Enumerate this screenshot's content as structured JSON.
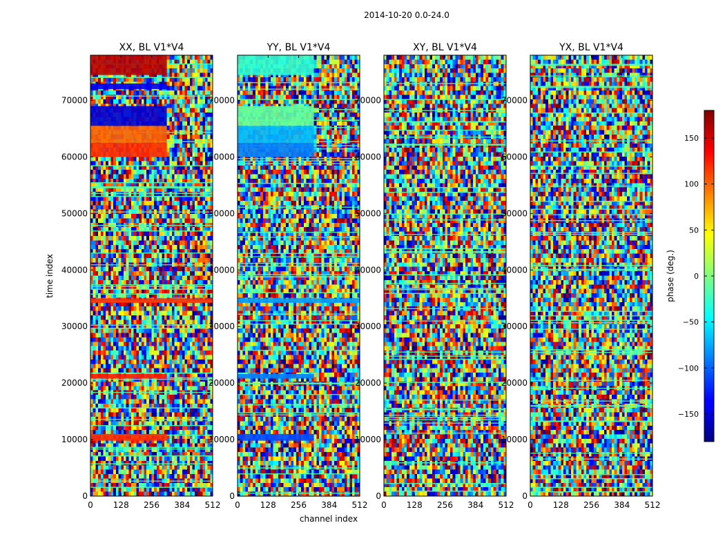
{
  "chart_data": {
    "type": "heatmap",
    "suptitle": "2014-10-20 0.0-24.0",
    "xlabel": "channel index",
    "ylabel": "time index",
    "xlim": [
      0,
      512
    ],
    "ylim": [
      0,
      78000
    ],
    "x_ticks": [
      0,
      128,
      256,
      384,
      512
    ],
    "y_ticks": [
      0,
      10000,
      20000,
      30000,
      40000,
      50000,
      60000,
      70000
    ],
    "panels": [
      {
        "title": "XX, BL V1*V4",
        "bands": [
          {
            "y0": 9800,
            "y1": 11000,
            "phase": 120,
            "x_end": 320
          },
          {
            "y0": 20800,
            "y1": 21600,
            "phase": 125,
            "x_end": 320
          },
          {
            "y0": 34200,
            "y1": 35000,
            "phase": 120,
            "x_end": 512
          },
          {
            "y0": 60000,
            "y1": 62500,
            "phase": 120,
            "x_end": 320
          },
          {
            "y0": 62500,
            "y1": 65500,
            "phase": 100,
            "x_end": 320
          },
          {
            "y0": 65500,
            "y1": 69000,
            "phase": -150,
            "x_end": 320
          },
          {
            "y0": 72000,
            "y1": 73000,
            "phase": -140,
            "x_end": 320
          },
          {
            "y0": 74500,
            "y1": 78000,
            "phase": 160,
            "x_end": 320
          }
        ]
      },
      {
        "title": "YY, BL V1*V4",
        "bands": [
          {
            "y0": 9800,
            "y1": 11000,
            "phase": -110,
            "x_end": 320
          },
          {
            "y0": 20800,
            "y1": 21600,
            "phase": -90,
            "x_end": 320
          },
          {
            "y0": 34200,
            "y1": 35000,
            "phase": -80,
            "x_end": 512
          },
          {
            "y0": 60000,
            "y1": 62500,
            "phase": -90,
            "x_end": 320
          },
          {
            "y0": 62500,
            "y1": 65500,
            "phase": -70,
            "x_end": 320
          },
          {
            "y0": 65500,
            "y1": 69000,
            "phase": -10,
            "x_end": 320
          },
          {
            "y0": 74500,
            "y1": 78000,
            "phase": -30,
            "x_end": 320
          }
        ]
      },
      {
        "title": "XY, BL V1*V4",
        "bands": []
      },
      {
        "title": "YX, BL V1*V4",
        "bands": []
      }
    ],
    "colorbar": {
      "label": "phase (deg.)",
      "range": [
        -180,
        180
      ],
      "ticks": [
        -150,
        -100,
        -50,
        0,
        50,
        100,
        150
      ],
      "tick_labels": [
        "−150",
        "−100",
        "−50",
        "0",
        "50",
        "100",
        "150"
      ],
      "colormap": "jet"
    }
  }
}
